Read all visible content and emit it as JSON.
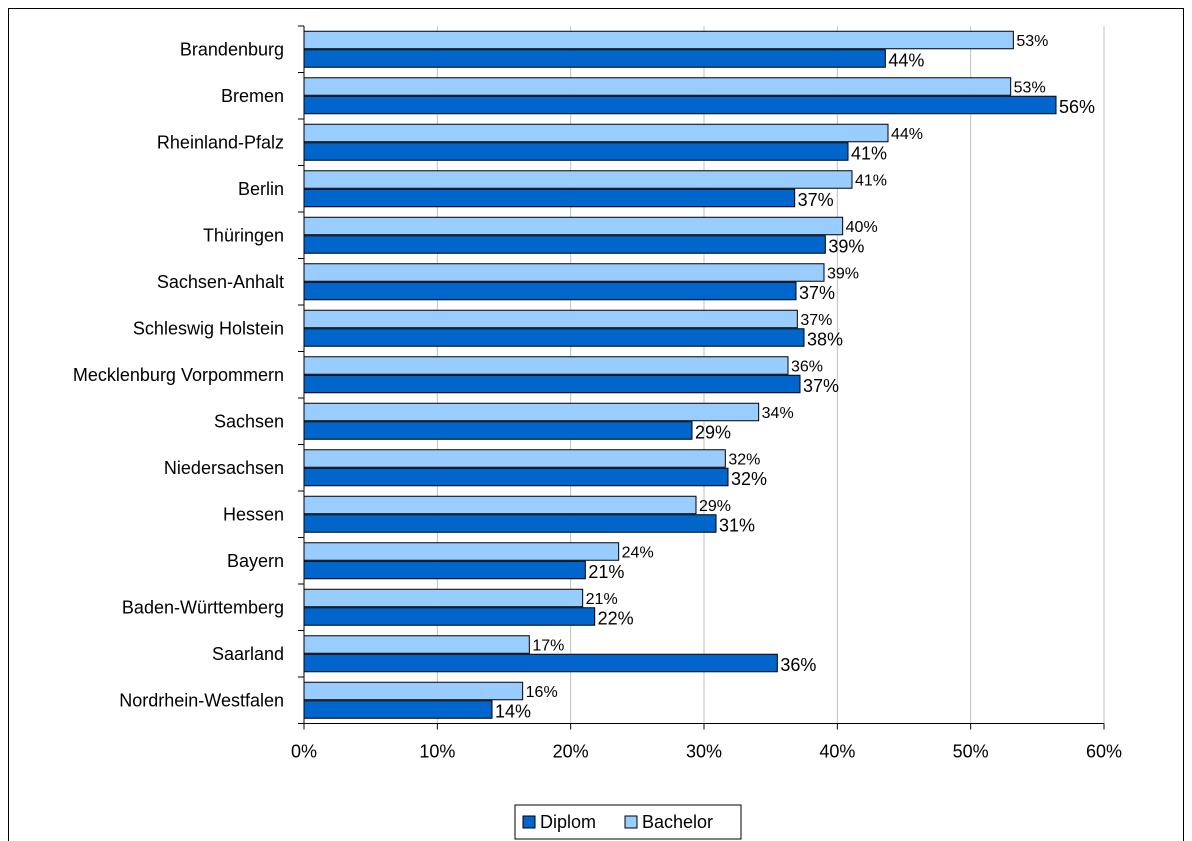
{
  "chart_data": {
    "type": "bar",
    "orientation": "horizontal",
    "categories": [
      "Brandenburg",
      "Bremen",
      "Rheinland-Pfalz",
      "Berlin",
      "Thüringen",
      "Sachsen-Anhalt",
      "Schleswig Holstein",
      "Mecklenburg Vorpommern",
      "Sachsen",
      "Niedersachsen",
      "Hessen",
      "Bayern",
      "Baden-Württemberg",
      "Saarland",
      "Nordrhein-Westfalen"
    ],
    "series": [
      {
        "name": "Bachelor",
        "color": "#99ccff",
        "values": [
          53.2,
          53.0,
          43.8,
          41.1,
          40.4,
          39.0,
          37.0,
          36.3,
          34.1,
          31.6,
          29.4,
          23.6,
          20.9,
          16.9,
          16.4
        ],
        "labels": [
          "53%",
          "53%",
          "44%",
          "41%",
          "40%",
          "39%",
          "37%",
          "36%",
          "34%",
          "32%",
          "29%",
          "24%",
          "21%",
          "17%",
          "16%"
        ]
      },
      {
        "name": "Diplom",
        "color": "#0066cc",
        "values": [
          43.6,
          56.4,
          40.8,
          36.8,
          39.1,
          36.9,
          37.5,
          37.2,
          29.1,
          31.8,
          30.9,
          21.1,
          21.8,
          35.5,
          14.1
        ],
        "labels": [
          "44%",
          "56%",
          "41%",
          "37%",
          "39%",
          "37%",
          "38%",
          "37%",
          "29%",
          "32%",
          "31%",
          "21%",
          "22%",
          "36%",
          "14%"
        ]
      }
    ],
    "xlim": [
      0,
      60
    ],
    "xticks": [
      "0%",
      "10%",
      "20%",
      "30%",
      "40%",
      "50%",
      "60%"
    ],
    "grid": "vertical",
    "legend": {
      "position": "bottom",
      "entries": [
        "Diplom",
        "Bachelor"
      ]
    }
  }
}
